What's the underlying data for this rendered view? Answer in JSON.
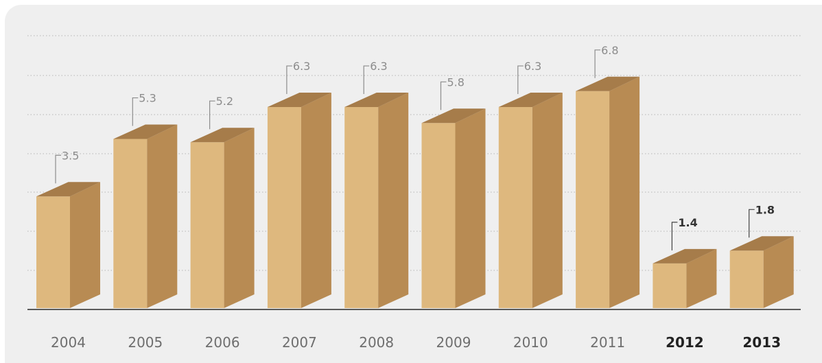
{
  "chart_data": {
    "type": "bar",
    "style": "3d-columns",
    "categories": [
      "2004",
      "2005",
      "2006",
      "2007",
      "2008",
      "2009",
      "2010",
      "2011",
      "2012",
      "2013"
    ],
    "values": [
      3.5,
      5.3,
      5.2,
      6.3,
      6.3,
      5.8,
      6.3,
      6.8,
      1.4,
      1.8
    ],
    "value_labels": [
      "3.5",
      "5.3",
      "5.2",
      "6.3",
      "6.3",
      "5.8",
      "6.3",
      "6.8",
      "1.4",
      "1.8"
    ],
    "highlighted_categories": [
      "2012",
      "2013"
    ],
    "title": "",
    "xlabel": "",
    "ylabel": "",
    "ylim": [
      0,
      7.5
    ],
    "grid": true,
    "legend": "none",
    "colors": {
      "background": "#efefef",
      "bar_front": "#deb87e",
      "bar_side": "#b88b53",
      "bar_top": "#a67c4a",
      "grid": "#b5b5b5",
      "baseline": "#5a5a5a",
      "label": "#8c8c8c",
      "label_highlight": "#333333"
    }
  }
}
